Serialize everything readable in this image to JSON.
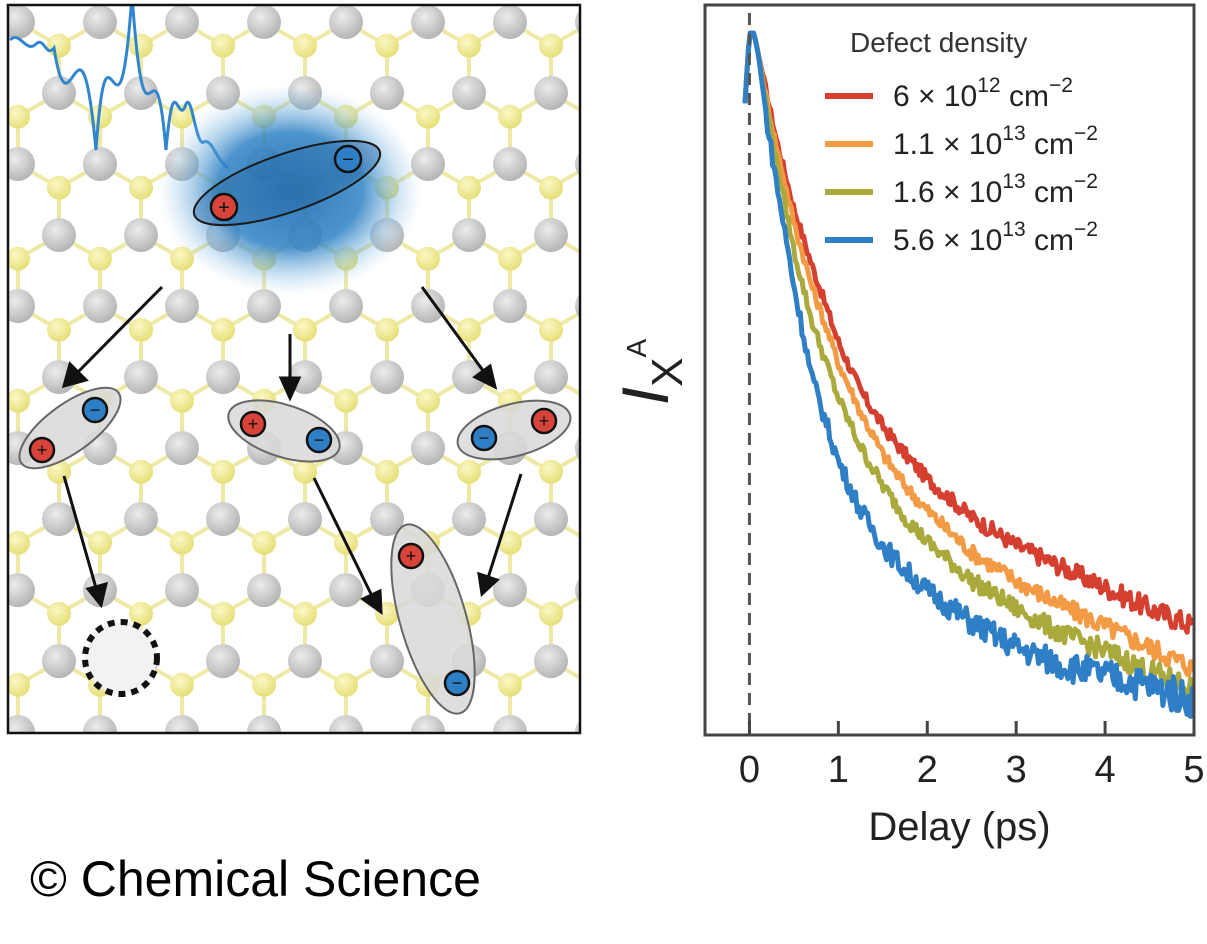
{
  "credit": "© Chemical Science",
  "schematic": {
    "lattice_colors": {
      "metal": "#c8c8c8",
      "chalcogen": "#f3ef9a",
      "bond_metal": "#d2d2d2",
      "bond_chalcogen": "#eeeaa6"
    },
    "charge_colors": {
      "hole": "#d9443a",
      "electron": "#3b8fd8"
    },
    "glow_color": "#2f82c4",
    "photon_color": "#2f86cf",
    "hole_symbol": "+",
    "electron_symbol": "−"
  },
  "chart_data": {
    "type": "line",
    "title": "",
    "xlabel": "Delay (ps)",
    "ylabel": {
      "base": "I",
      "sub": "X",
      "sup": "A"
    },
    "xlim": [
      -0.5,
      5
    ],
    "ylim": [
      0,
      1.04
    ],
    "xticks": [
      "0",
      "1",
      "2",
      "3",
      "4",
      "5"
    ],
    "grid": false,
    "zero_line": {
      "x": 0,
      "style": "dashed"
    },
    "legend": {
      "title": "Defect density",
      "placement": "top-right",
      "entries": [
        {
          "mantissa": "6 × 10",
          "exp": "12",
          "unit": " cm",
          "unit_exp": "−2"
        },
        {
          "mantissa": "1.1 × 10",
          "exp": "13",
          "unit": " cm",
          "unit_exp": "−2"
        },
        {
          "mantissa": "1.6 × 10",
          "exp": "13",
          "unit": " cm",
          "unit_exp": "−2"
        },
        {
          "mantissa": "5.6 × 10",
          "exp": "13",
          "unit": " cm",
          "unit_exp": "−2"
        }
      ]
    },
    "series": [
      {
        "color": "#d43f2f",
        "noise": 0.01,
        "x": [
          -0.05,
          0,
          0.05,
          0.1,
          0.2,
          0.3,
          0.5,
          0.7,
          1.0,
          1.25,
          1.5,
          1.75,
          2.0,
          2.5,
          3.0,
          3.5,
          4.0,
          4.5,
          5.0
        ],
        "y": [
          0.9,
          1.0,
          1.0,
          0.97,
          0.91,
          0.85,
          0.75,
          0.67,
          0.56,
          0.49,
          0.44,
          0.4,
          0.365,
          0.31,
          0.27,
          0.24,
          0.21,
          0.18,
          0.155
        ]
      },
      {
        "color": "#f39a45",
        "noise": 0.01,
        "x": [
          -0.05,
          0,
          0.05,
          0.1,
          0.2,
          0.3,
          0.5,
          0.7,
          1.0,
          1.25,
          1.5,
          1.75,
          2.0,
          2.5,
          3.0,
          3.5,
          4.0,
          4.5,
          5.0
        ],
        "y": [
          0.9,
          1.0,
          1.0,
          0.97,
          0.9,
          0.84,
          0.73,
          0.64,
          0.53,
          0.46,
          0.4,
          0.355,
          0.32,
          0.26,
          0.22,
          0.185,
          0.155,
          0.125,
          0.095
        ]
      },
      {
        "color": "#a9a93c",
        "noise": 0.011,
        "x": [
          -0.05,
          0,
          0.05,
          0.1,
          0.2,
          0.3,
          0.5,
          0.7,
          1.0,
          1.25,
          1.5,
          1.75,
          2.0,
          2.5,
          3.0,
          3.5,
          4.0,
          4.5,
          5.0
        ],
        "y": [
          0.9,
          1.0,
          1.0,
          0.97,
          0.89,
          0.82,
          0.69,
          0.59,
          0.48,
          0.41,
          0.355,
          0.31,
          0.275,
          0.22,
          0.18,
          0.145,
          0.12,
          0.09,
          0.065
        ]
      },
      {
        "color": "#2f7fc6",
        "noise": 0.016,
        "x": [
          -0.05,
          0,
          0.05,
          0.1,
          0.2,
          0.3,
          0.5,
          0.7,
          1.0,
          1.25,
          1.5,
          1.75,
          2.0,
          2.5,
          3.0,
          3.5,
          4.0,
          4.5,
          5.0
        ],
        "y": [
          0.9,
          1.0,
          1.0,
          0.97,
          0.87,
          0.79,
          0.64,
          0.51,
          0.39,
          0.32,
          0.27,
          0.235,
          0.205,
          0.16,
          0.125,
          0.1,
          0.085,
          0.07,
          0.05
        ]
      }
    ]
  }
}
